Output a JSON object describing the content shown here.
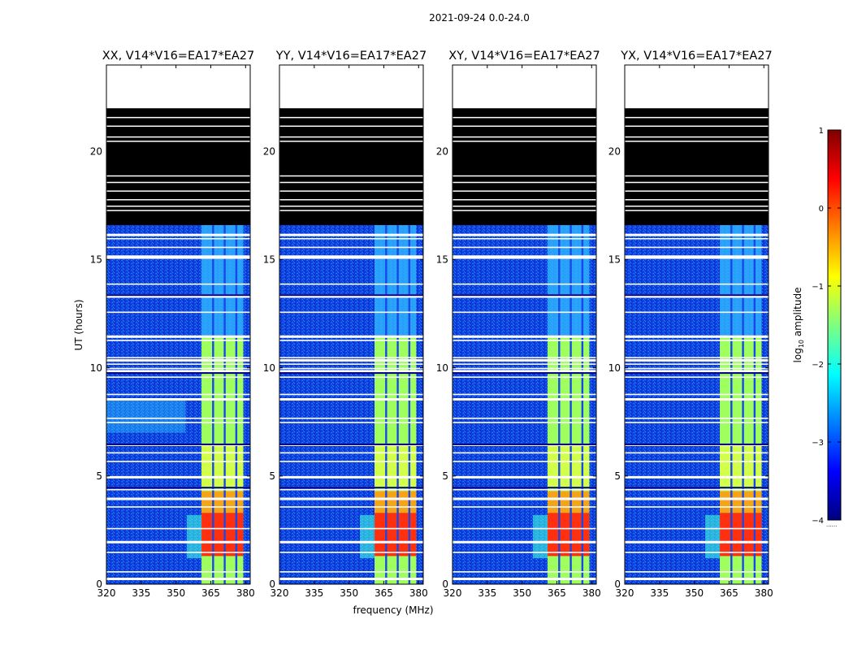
{
  "figure": {
    "suptitle": "2021-09-24 0.0-24.0",
    "shared_xlabel": "frequency (MHz)",
    "shared_ylabel": "UT (hours)"
  },
  "chart_data": {
    "type": "heatmap",
    "x_range_mhz": [
      320,
      382
    ],
    "y_range_hours": [
      0,
      24
    ],
    "x_ticks": [
      320,
      335,
      350,
      365,
      380
    ],
    "y_ticks": [
      0,
      5,
      10,
      15,
      20
    ],
    "colorbar": {
      "label_prefix": "log",
      "label_sub": "10",
      "label_suffix": " amplitude",
      "range": [
        -4,
        1
      ],
      "ticks": [
        "1",
        "0",
        "−1",
        "−2",
        "−3",
        "−4"
      ],
      "footer": "......",
      "colors": [
        "#00007f",
        "#0000ff",
        "#007fff",
        "#00ffff",
        "#7fff7f",
        "#ffff00",
        "#ff7f00",
        "#ff0000",
        "#7f0000"
      ]
    },
    "panels": [
      {
        "title": "XX, V14*V16=EA17*EA27"
      },
      {
        "title": "YY, V14*V16=EA17*EA27"
      },
      {
        "title": "XY, V14*V16=EA17*EA27"
      },
      {
        "title": "YX, V14*V16=EA17*EA27"
      }
    ],
    "features": {
      "empty_after_hour": 22.0,
      "flagged_black_hours": [
        16.6,
        22.0
      ],
      "rfi_band_mhz": [
        361,
        379
      ],
      "rfi_channel_gaps_mhz": [
        366,
        371,
        376
      ],
      "strong_rfi_hours": [
        1.3,
        3.3
      ],
      "moderate_rfi_hours": [
        0,
        11.5
      ],
      "flag_rows_hours": [
        0.3,
        0.6,
        1.5,
        2.0,
        2.6,
        3.6,
        4.0,
        4.4,
        4.5,
        5.0,
        5.7,
        6.1,
        6.5,
        7.5,
        7.7,
        8.6,
        8.8,
        9.6,
        9.9,
        10.0,
        10.2,
        10.4,
        10.5,
        11.3,
        11.5,
        12.6,
        13.3,
        13.4,
        13.9,
        15.1,
        15.2,
        15.6,
        16.0,
        16.2
      ]
    }
  }
}
